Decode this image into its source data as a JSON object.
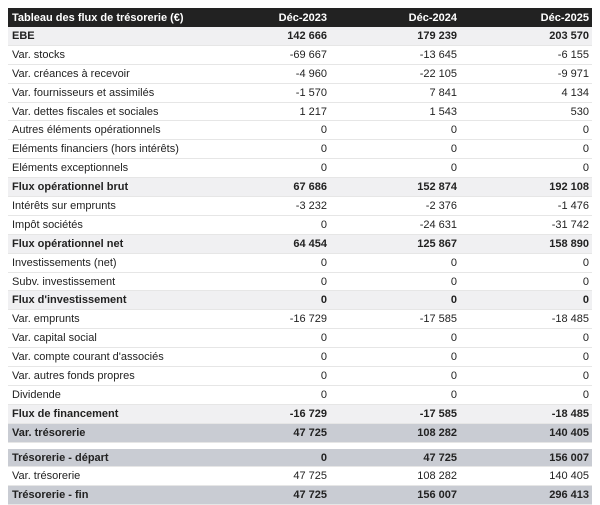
{
  "table": {
    "columns": [
      "Tableau des flux de trésorerie (€)",
      "Déc-2023",
      "Déc-2024",
      "Déc-2025"
    ],
    "rows": [
      [
        "EBE",
        "142 666",
        "179 239",
        "203 570"
      ],
      [
        "Var. stocks",
        "-69 667",
        "-13 645",
        "-6 155"
      ],
      [
        "Var. créances à recevoir",
        "-4 960",
        "-22 105",
        "-9 971"
      ],
      [
        "Var. fournisseurs et assimilés",
        "-1 570",
        "7 841",
        "4 134"
      ],
      [
        "Var. dettes fiscales et sociales",
        "1 217",
        "1 543",
        "530"
      ],
      [
        "Autres éléments opérationnels",
        "0",
        "0",
        "0"
      ],
      [
        "Eléments financiers (hors intérêts)",
        "0",
        "0",
        "0"
      ],
      [
        "Eléments exceptionnels",
        "0",
        "0",
        "0"
      ],
      [
        "Flux opérationnel brut",
        "67 686",
        "152 874",
        "192 108"
      ],
      [
        "Intérêts sur emprunts",
        "-3 232",
        "-2 376",
        "-1 476"
      ],
      [
        "Impôt sociétés",
        "0",
        "-24 631",
        "-31 742"
      ],
      [
        "Flux opérationnel net",
        "64 454",
        "125 867",
        "158 890"
      ],
      [
        "Investissements (net)",
        "0",
        "0",
        "0"
      ],
      [
        "Subv. investissement",
        "0",
        "0",
        "0"
      ],
      [
        "Flux d'investissement",
        "0",
        "0",
        "0"
      ],
      [
        "Var. emprunts",
        "-16 729",
        "-17 585",
        "-18 485"
      ],
      [
        "Var. capital social",
        "0",
        "0",
        "0"
      ],
      [
        "Var. compte courant d'associés",
        "0",
        "0",
        "0"
      ],
      [
        "Var. autres fonds propres",
        "0",
        "0",
        "0"
      ],
      [
        "Dividende",
        "0",
        "0",
        "0"
      ],
      [
        "Flux de financement",
        "-16 729",
        "-17 585",
        "-18 485"
      ],
      [
        "Var. trésorerie",
        "47 725",
        "108 282",
        "140 405"
      ]
    ]
  },
  "summary": {
    "rows": [
      [
        "Trésorerie - départ",
        "0",
        "47 725",
        "156 007"
      ],
      [
        "Var. trésorerie",
        "47 725",
        "108 282",
        "140 405"
      ],
      [
        "Trésorerie - fin",
        "47 725",
        "156 007",
        "296 413"
      ]
    ]
  }
}
